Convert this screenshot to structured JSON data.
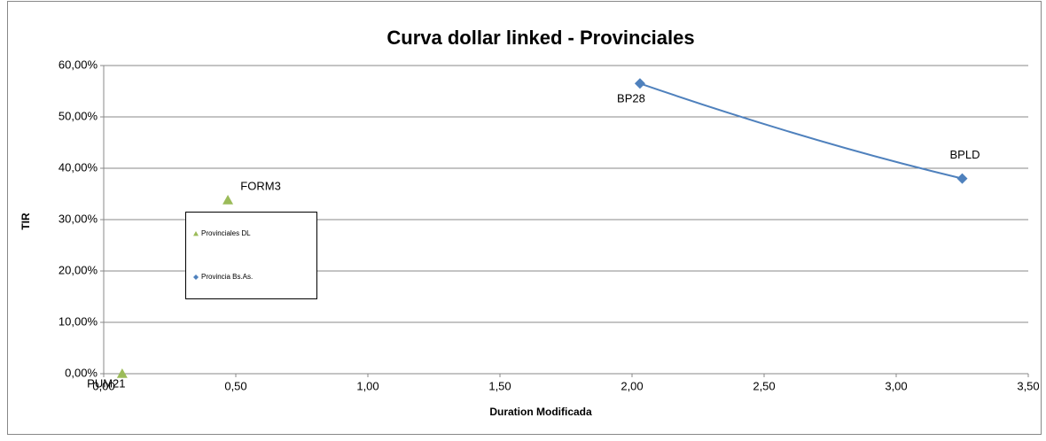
{
  "chart_data": {
    "type": "scatter",
    "title": "Curva dollar linked - Provinciales",
    "x_label": "Duration Modificada",
    "y_label": "TIR",
    "xlim": [
      0,
      3.5
    ],
    "xticks": [
      {
        "value": 0,
        "label": "0,00"
      },
      {
        "value": 0.5,
        "label": "0,50"
      },
      {
        "value": 1,
        "label": "1,00"
      },
      {
        "value": 1.5,
        "label": "1,50"
      },
      {
        "value": 2,
        "label": "2,00"
      },
      {
        "value": 2.5,
        "label": "2,50"
      },
      {
        "value": 3,
        "label": "3,00"
      },
      {
        "value": 3.5,
        "label": "3,50"
      }
    ],
    "ylim": [
      0,
      60
    ],
    "yticks": [
      {
        "value": 0,
        "label": "0,00%"
      },
      {
        "value": 10,
        "label": "10,00%"
      },
      {
        "value": 20,
        "label": "20,00%"
      },
      {
        "value": 30,
        "label": "30,00%"
      },
      {
        "value": 40,
        "label": "40,00%"
      },
      {
        "value": 50,
        "label": "50,00%"
      },
      {
        "value": 60,
        "label": "60,00%"
      }
    ],
    "grid": true,
    "series": [
      {
        "name": "Provinciales DL",
        "color": "#9bbb59",
        "marker": "triangle",
        "line": false,
        "x": [
          0.07,
          0.47
        ],
        "values": [
          0,
          33.8
        ],
        "labels": [
          "PUM21",
          "FORM3"
        ]
      },
      {
        "name": "Provincia Bs.As.",
        "color": "#4f81bd",
        "marker": "diamond",
        "line": true,
        "x": [
          2.03,
          3.25
        ],
        "values": [
          56.5,
          38.0
        ],
        "labels": [
          "BP28",
          "BPLD"
        ]
      }
    ]
  }
}
